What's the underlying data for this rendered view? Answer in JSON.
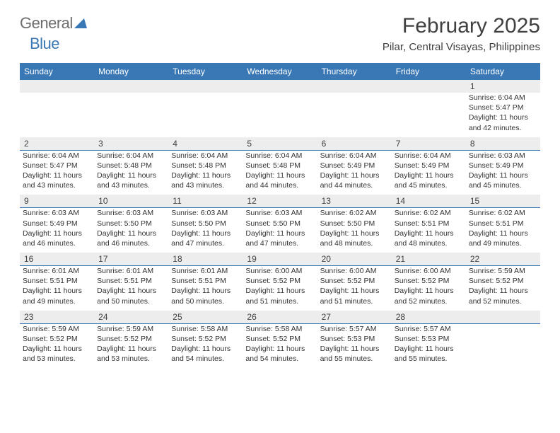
{
  "brand": {
    "part1": "General",
    "part2": "Blue"
  },
  "title": "February 2025",
  "location": "Pilar, Central Visayas, Philippines",
  "colors": {
    "header_bg": "#3a78b5",
    "header_text": "#ffffff",
    "daynum_bg": "#ededed",
    "text": "#333333",
    "rule": "#3a78b5"
  },
  "dow": [
    "Sunday",
    "Monday",
    "Tuesday",
    "Wednesday",
    "Thursday",
    "Friday",
    "Saturday"
  ],
  "weeks": [
    [
      null,
      null,
      null,
      null,
      null,
      null,
      {
        "d": "1",
        "sr": "6:04 AM",
        "ss": "5:47 PM",
        "dlh": "11",
        "dlm": "42"
      }
    ],
    [
      {
        "d": "2",
        "sr": "6:04 AM",
        "ss": "5:47 PM",
        "dlh": "11",
        "dlm": "43"
      },
      {
        "d": "3",
        "sr": "6:04 AM",
        "ss": "5:48 PM",
        "dlh": "11",
        "dlm": "43"
      },
      {
        "d": "4",
        "sr": "6:04 AM",
        "ss": "5:48 PM",
        "dlh": "11",
        "dlm": "43"
      },
      {
        "d": "5",
        "sr": "6:04 AM",
        "ss": "5:48 PM",
        "dlh": "11",
        "dlm": "44"
      },
      {
        "d": "6",
        "sr": "6:04 AM",
        "ss": "5:49 PM",
        "dlh": "11",
        "dlm": "44"
      },
      {
        "d": "7",
        "sr": "6:04 AM",
        "ss": "5:49 PM",
        "dlh": "11",
        "dlm": "45"
      },
      {
        "d": "8",
        "sr": "6:03 AM",
        "ss": "5:49 PM",
        "dlh": "11",
        "dlm": "45"
      }
    ],
    [
      {
        "d": "9",
        "sr": "6:03 AM",
        "ss": "5:49 PM",
        "dlh": "11",
        "dlm": "46"
      },
      {
        "d": "10",
        "sr": "6:03 AM",
        "ss": "5:50 PM",
        "dlh": "11",
        "dlm": "46"
      },
      {
        "d": "11",
        "sr": "6:03 AM",
        "ss": "5:50 PM",
        "dlh": "11",
        "dlm": "47"
      },
      {
        "d": "12",
        "sr": "6:03 AM",
        "ss": "5:50 PM",
        "dlh": "11",
        "dlm": "47"
      },
      {
        "d": "13",
        "sr": "6:02 AM",
        "ss": "5:50 PM",
        "dlh": "11",
        "dlm": "48"
      },
      {
        "d": "14",
        "sr": "6:02 AM",
        "ss": "5:51 PM",
        "dlh": "11",
        "dlm": "48"
      },
      {
        "d": "15",
        "sr": "6:02 AM",
        "ss": "5:51 PM",
        "dlh": "11",
        "dlm": "49"
      }
    ],
    [
      {
        "d": "16",
        "sr": "6:01 AM",
        "ss": "5:51 PM",
        "dlh": "11",
        "dlm": "49"
      },
      {
        "d": "17",
        "sr": "6:01 AM",
        "ss": "5:51 PM",
        "dlh": "11",
        "dlm": "50"
      },
      {
        "d": "18",
        "sr": "6:01 AM",
        "ss": "5:51 PM",
        "dlh": "11",
        "dlm": "50"
      },
      {
        "d": "19",
        "sr": "6:00 AM",
        "ss": "5:52 PM",
        "dlh": "11",
        "dlm": "51"
      },
      {
        "d": "20",
        "sr": "6:00 AM",
        "ss": "5:52 PM",
        "dlh": "11",
        "dlm": "51"
      },
      {
        "d": "21",
        "sr": "6:00 AM",
        "ss": "5:52 PM",
        "dlh": "11",
        "dlm": "52"
      },
      {
        "d": "22",
        "sr": "5:59 AM",
        "ss": "5:52 PM",
        "dlh": "11",
        "dlm": "52"
      }
    ],
    [
      {
        "d": "23",
        "sr": "5:59 AM",
        "ss": "5:52 PM",
        "dlh": "11",
        "dlm": "53"
      },
      {
        "d": "24",
        "sr": "5:59 AM",
        "ss": "5:52 PM",
        "dlh": "11",
        "dlm": "53"
      },
      {
        "d": "25",
        "sr": "5:58 AM",
        "ss": "5:52 PM",
        "dlh": "11",
        "dlm": "54"
      },
      {
        "d": "26",
        "sr": "5:58 AM",
        "ss": "5:52 PM",
        "dlh": "11",
        "dlm": "54"
      },
      {
        "d": "27",
        "sr": "5:57 AM",
        "ss": "5:53 PM",
        "dlh": "11",
        "dlm": "55"
      },
      {
        "d": "28",
        "sr": "5:57 AM",
        "ss": "5:53 PM",
        "dlh": "11",
        "dlm": "55"
      },
      null
    ]
  ],
  "labels": {
    "sunrise": "Sunrise:",
    "sunset": "Sunset:",
    "daylight_prefix": "Daylight:",
    "hours_word": "hours",
    "and_word": "and",
    "minutes_word": "minutes."
  }
}
